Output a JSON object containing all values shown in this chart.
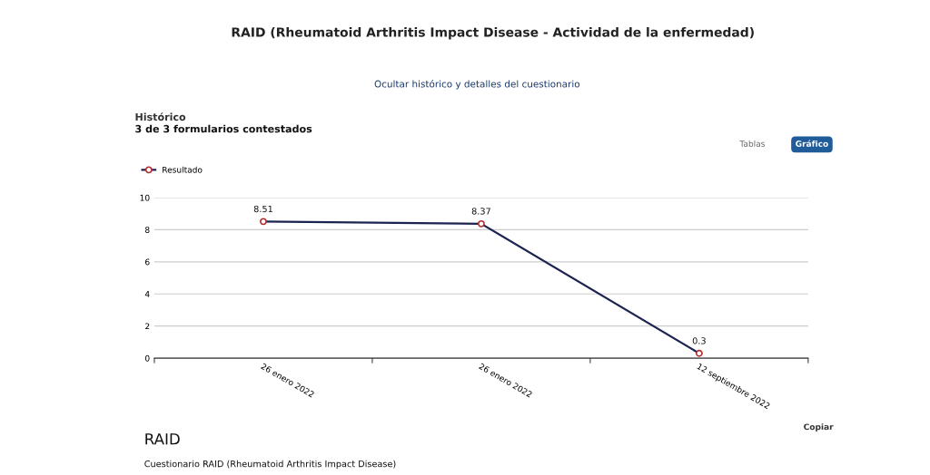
{
  "chart_data": {
    "type": "line",
    "title": "RAID (Rheumatoid Arthritis Impact Disease - Actividad de la enfermedad)",
    "subtitle": "Histórico",
    "annotations": [
      "Ocultar histórico y detalles del cuestionario",
      "3 de 3 formularios contestados",
      "Tablas",
      "Gráfico",
      "Copiar",
      "RAID",
      "Cuestionario RAID (Rheumatoid Arthritis Impact Disease)"
    ],
    "categories": [
      "26 enero 2022",
      "26 enero 2022",
      "12 septiembre 2022"
    ],
    "series": [
      {
        "name": "Resultado",
        "color": "#1c2350",
        "values": [
          8.51,
          8.37,
          0.3
        ]
      }
    ],
    "ylim": [
      0,
      10
    ],
    "yticks": [
      0,
      2,
      4,
      6,
      8,
      10
    ],
    "grid": "y",
    "legend": "top left",
    "marker": "circle",
    "line_style": "solid",
    "data_labels": true
  }
}
